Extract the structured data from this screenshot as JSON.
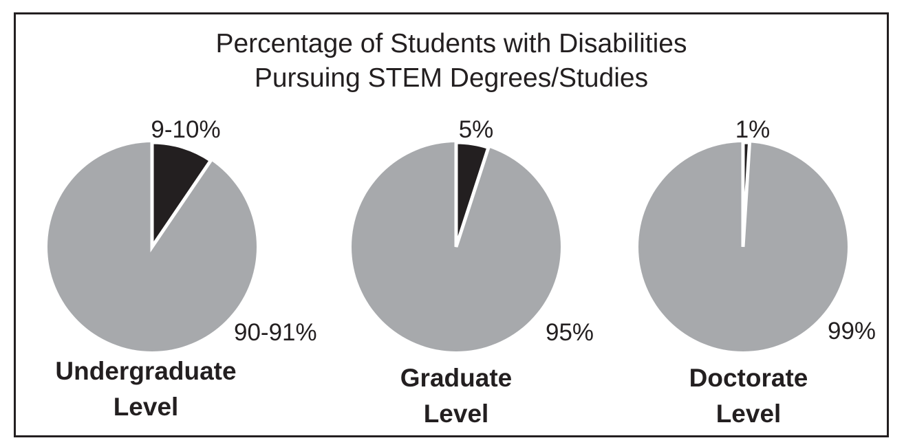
{
  "chart_data": [
    {
      "type": "pie",
      "title": "Percentage of Students with Disabilities\nPursuing STEM Degrees/Studies",
      "category": "Undergraduate Level",
      "category_lines": [
        "Undergraduate",
        "Level"
      ],
      "slices": [
        {
          "label": "9-10%",
          "value": 9.5,
          "color": "#231f20"
        },
        {
          "label": "90-91%",
          "value": 90.5,
          "color": "#a7a9ac"
        }
      ]
    },
    {
      "type": "pie",
      "category": "Graduate Level",
      "category_lines": [
        "Graduate",
        "Level"
      ],
      "slices": [
        {
          "label": "5%",
          "value": 5,
          "color": "#231f20"
        },
        {
          "label": "95%",
          "value": 95,
          "color": "#a7a9ac"
        }
      ]
    },
    {
      "type": "pie",
      "category": "Doctorate Level",
      "category_lines": [
        "Doctorate",
        "Level"
      ],
      "slices": [
        {
          "label": "1%",
          "value": 1,
          "color": "#231f20"
        },
        {
          "label": "99%",
          "value": 99,
          "color": "#a7a9ac"
        }
      ]
    }
  ]
}
